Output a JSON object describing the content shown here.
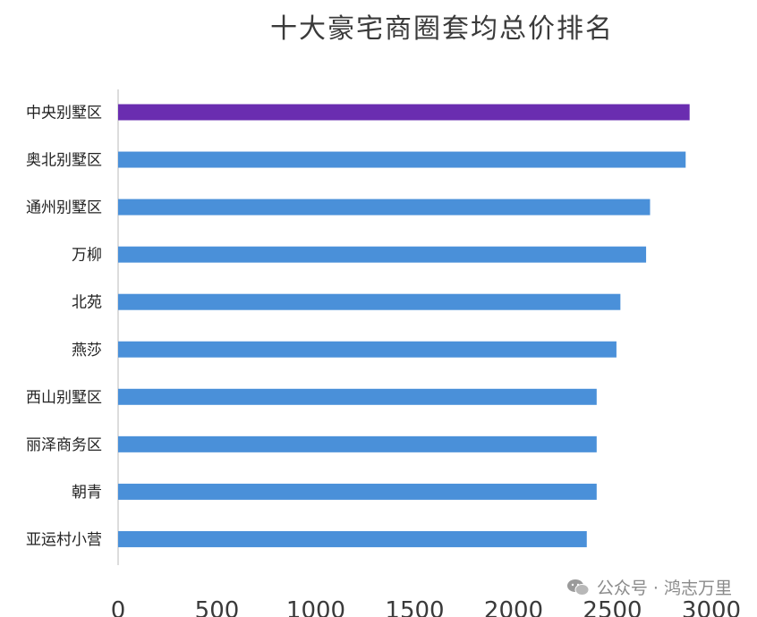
{
  "chart_data": {
    "type": "bar",
    "orientation": "horizontal",
    "title": "十大豪宅商圈套均总价排名",
    "categories": [
      "中央别墅区",
      "奥北别墅区",
      "通州别墅区",
      "万柳",
      "北苑",
      "燕莎",
      "西山别墅区",
      "丽泽商务区",
      "朝青",
      "亚运村小营"
    ],
    "values": [
      2890,
      2870,
      2690,
      2670,
      2540,
      2520,
      2420,
      2420,
      2420,
      2370
    ],
    "highlight_index": 0,
    "xlim": [
      0,
      3000
    ],
    "xticks": [
      "0",
      "500",
      "1000",
      "1500",
      "2000",
      "2500",
      "3000"
    ],
    "xlabel": "",
    "ylabel": "",
    "grid": false,
    "colors": {
      "bar": "#4a90d9",
      "highlight": "#6a2db0"
    }
  },
  "watermark": {
    "text": "公众号 · 鸿志万里",
    "icon": "wechat-icon"
  }
}
